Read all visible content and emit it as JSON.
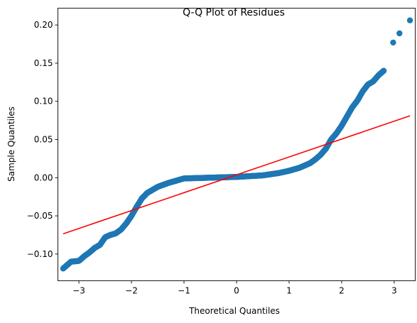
{
  "chart_data": {
    "type": "scatter",
    "title": "Q-Q Plot of Residues",
    "xlabel": "Theoretical Quantiles",
    "ylabel": "Sample Quantiles",
    "xlim": [
      -3.4,
      3.4
    ],
    "ylim": [
      -0.135,
      0.222
    ],
    "xticks": [
      -3,
      -2,
      -1,
      0,
      1,
      2,
      3
    ],
    "xtick_labels": [
      "−3",
      "−2",
      "−1",
      "0",
      "1",
      "2",
      "3"
    ],
    "yticks": [
      -0.1,
      -0.05,
      0.0,
      0.05,
      0.1,
      0.15,
      0.2
    ],
    "ytick_labels": [
      "−0.10",
      "−0.05",
      "0.00",
      "0.05",
      "0.10",
      "0.15",
      "0.20"
    ],
    "grid": false,
    "colors": {
      "points": "#1f77b4",
      "reference_line": "#ff0000"
    },
    "reference_line": {
      "x": [
        -3.3,
        3.3
      ],
      "y": [
        -0.0735,
        0.081
      ]
    },
    "anchors": [
      [
        -3.3,
        -0.119
      ],
      [
        -3.15,
        -0.11
      ],
      [
        -3.0,
        -0.109
      ],
      [
        -2.9,
        -0.103
      ],
      [
        -2.8,
        -0.098
      ],
      [
        -2.7,
        -0.092
      ],
      [
        -2.6,
        -0.088
      ],
      [
        -2.5,
        -0.078
      ],
      [
        -2.4,
        -0.075
      ],
      [
        -2.3,
        -0.073
      ],
      [
        -2.2,
        -0.068
      ],
      [
        -2.1,
        -0.06
      ],
      [
        -2.0,
        -0.05
      ],
      [
        -1.9,
        -0.038
      ],
      [
        -1.8,
        -0.027
      ],
      [
        -1.7,
        -0.02
      ],
      [
        -1.5,
        -0.012
      ],
      [
        -1.3,
        -0.007
      ],
      [
        -1.1,
        -0.003
      ],
      [
        -1.0,
        -0.001
      ],
      [
        -0.5,
        0.0
      ],
      [
        0.0,
        0.001
      ],
      [
        0.5,
        0.003
      ],
      [
        0.8,
        0.006
      ],
      [
        1.0,
        0.009
      ],
      [
        1.2,
        0.013
      ],
      [
        1.4,
        0.019
      ],
      [
        1.5,
        0.024
      ],
      [
        1.6,
        0.03
      ],
      [
        1.7,
        0.038
      ],
      [
        1.8,
        0.05
      ],
      [
        1.9,
        0.058
      ],
      [
        2.0,
        0.068
      ],
      [
        2.1,
        0.08
      ],
      [
        2.2,
        0.092
      ],
      [
        2.3,
        0.101
      ],
      [
        2.4,
        0.113
      ],
      [
        2.5,
        0.122
      ],
      [
        2.6,
        0.126
      ],
      [
        2.7,
        0.134
      ],
      [
        2.8,
        0.14
      ]
    ],
    "outliers": [
      [
        2.98,
        0.177
      ],
      [
        3.1,
        0.189
      ],
      [
        3.3,
        0.206
      ]
    ]
  }
}
